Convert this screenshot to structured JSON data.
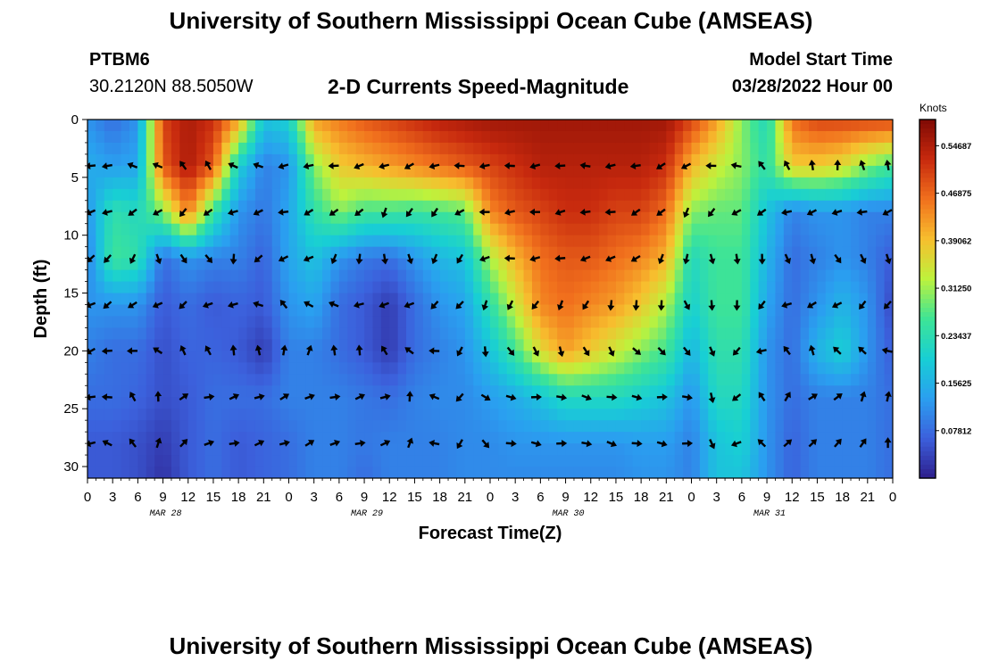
{
  "title": "University of Southern Mississippi Ocean Cube (AMSEAS)",
  "station": {
    "name": "PTBM6",
    "coords": "30.2120N  88.5050W"
  },
  "subtitle": "2-D Currents Speed-Magnitude",
  "model": {
    "label": "Model Start Time",
    "value": "03/28/2022 Hour 00"
  },
  "footer_title": "University of Southern Mississippi Ocean Cube (AMSEAS)",
  "chart_data": {
    "type": "heatmap",
    "title": "2-D Currents Speed-Magnitude",
    "xlabel": "Forecast Time(Z)",
    "ylabel": "Depth (ft)",
    "x_range_hours": [
      0,
      96
    ],
    "x_tick_labels": [
      "0",
      "3",
      "6",
      "9",
      "12",
      "15",
      "18",
      "21",
      "0",
      "3",
      "6",
      "9",
      "12",
      "15",
      "18",
      "21",
      "0",
      "3",
      "6",
      "9",
      "12",
      "15",
      "18",
      "21",
      "0",
      "3",
      "6",
      "9",
      "12",
      "15",
      "18",
      "21",
      "0"
    ],
    "date_labels": [
      "MAR 28",
      "MAR 29",
      "MAR 30",
      "MAR 31"
    ],
    "ylim": [
      0,
      31
    ],
    "y_ticks": [
      0,
      5,
      10,
      15,
      20,
      25,
      30
    ],
    "colorbar": {
      "unit": "Knots",
      "tick_labels": [
        "0.54687",
        "0.46875",
        "0.39062",
        "0.31250",
        "0.23437",
        "0.15625",
        "0.07812"
      ],
      "tick_values": [
        0.54687,
        0.46875,
        0.39062,
        0.3125,
        0.23437,
        0.15625,
        0.07812
      ],
      "range": [
        0.0,
        0.59
      ],
      "colors": [
        "#2d1e8c",
        "#3c60dc",
        "#2a9ff0",
        "#18cfd4",
        "#3ee496",
        "#bef23c",
        "#f7be2e",
        "#f1701d",
        "#c7290e",
        "#7f0a04"
      ]
    },
    "arrow_depths_ft": [
      4,
      8,
      12,
      16,
      20,
      24,
      28
    ],
    "arrow_times_h": [
      0,
      2,
      5,
      8,
      11,
      14,
      17,
      20,
      23,
      26,
      29,
      32,
      35,
      38,
      41,
      44,
      47,
      50,
      53,
      56,
      59,
      62,
      65,
      68,
      71,
      74,
      77,
      80,
      83,
      86,
      89,
      92,
      95
    ],
    "speed_field": {
      "times_h": [
        0,
        3,
        6,
        9,
        12,
        15,
        18,
        21,
        24,
        27,
        30,
        33,
        36,
        39,
        42,
        45,
        48,
        51,
        54,
        57,
        60,
        63,
        66,
        69,
        72,
        75,
        78,
        81,
        84,
        87,
        90,
        93,
        96
      ],
      "depths_ft": [
        0,
        4,
        8,
        12,
        16,
        20,
        24,
        28,
        31
      ],
      "values_knots": [
        [
          0.12,
          0.15,
          0.12,
          0.1,
          0.12,
          0.1,
          0.08,
          0.06,
          0.06
        ],
        [
          0.08,
          0.13,
          0.24,
          0.26,
          0.12,
          0.08,
          0.08,
          0.06,
          0.06
        ],
        [
          0.12,
          0.14,
          0.22,
          0.24,
          0.12,
          0.08,
          0.07,
          0.05,
          0.05
        ],
        [
          0.5,
          0.48,
          0.3,
          0.08,
          0.06,
          0.05,
          0.05,
          0.03,
          0.02
        ],
        [
          0.55,
          0.55,
          0.45,
          0.12,
          0.08,
          0.07,
          0.06,
          0.06,
          0.06
        ],
        [
          0.52,
          0.48,
          0.25,
          0.1,
          0.06,
          0.07,
          0.08,
          0.08,
          0.08
        ],
        [
          0.42,
          0.2,
          0.12,
          0.1,
          0.07,
          0.06,
          0.08,
          0.06,
          0.06
        ],
        [
          0.18,
          0.1,
          0.09,
          0.07,
          0.06,
          0.03,
          0.08,
          0.07,
          0.07
        ],
        [
          0.2,
          0.12,
          0.14,
          0.14,
          0.12,
          0.1,
          0.1,
          0.08,
          0.08
        ],
        [
          0.42,
          0.3,
          0.24,
          0.18,
          0.14,
          0.1,
          0.1,
          0.1,
          0.1
        ],
        [
          0.45,
          0.38,
          0.3,
          0.12,
          0.08,
          0.08,
          0.1,
          0.1,
          0.1
        ],
        [
          0.48,
          0.4,
          0.26,
          0.09,
          0.06,
          0.06,
          0.09,
          0.09,
          0.08
        ],
        [
          0.5,
          0.42,
          0.26,
          0.08,
          0.03,
          0.03,
          0.08,
          0.1,
          0.1
        ],
        [
          0.52,
          0.44,
          0.25,
          0.12,
          0.08,
          0.08,
          0.1,
          0.1,
          0.1
        ],
        [
          0.54,
          0.46,
          0.26,
          0.16,
          0.12,
          0.1,
          0.11,
          0.1,
          0.1
        ],
        [
          0.55,
          0.48,
          0.28,
          0.18,
          0.14,
          0.12,
          0.11,
          0.11,
          0.11
        ],
        [
          0.56,
          0.5,
          0.44,
          0.32,
          0.24,
          0.18,
          0.13,
          0.11,
          0.11
        ],
        [
          0.56,
          0.52,
          0.48,
          0.4,
          0.34,
          0.26,
          0.15,
          0.12,
          0.11
        ],
        [
          0.56,
          0.54,
          0.5,
          0.46,
          0.44,
          0.36,
          0.18,
          0.12,
          0.11
        ],
        [
          0.56,
          0.54,
          0.52,
          0.48,
          0.46,
          0.42,
          0.22,
          0.12,
          0.11
        ],
        [
          0.56,
          0.54,
          0.52,
          0.48,
          0.44,
          0.38,
          0.22,
          0.12,
          0.11
        ],
        [
          0.56,
          0.54,
          0.5,
          0.46,
          0.42,
          0.34,
          0.22,
          0.12,
          0.11
        ],
        [
          0.56,
          0.54,
          0.5,
          0.44,
          0.38,
          0.3,
          0.2,
          0.13,
          0.12
        ],
        [
          0.56,
          0.52,
          0.46,
          0.4,
          0.32,
          0.26,
          0.18,
          0.13,
          0.12
        ],
        [
          0.5,
          0.4,
          0.3,
          0.22,
          0.2,
          0.16,
          0.12,
          0.1,
          0.1
        ],
        [
          0.42,
          0.34,
          0.28,
          0.26,
          0.26,
          0.24,
          0.22,
          0.18,
          0.18
        ],
        [
          0.3,
          0.3,
          0.28,
          0.26,
          0.26,
          0.24,
          0.22,
          0.2,
          0.18
        ],
        [
          0.22,
          0.24,
          0.18,
          0.16,
          0.14,
          0.12,
          0.12,
          0.12,
          0.12
        ],
        [
          0.46,
          0.38,
          0.1,
          0.08,
          0.08,
          0.08,
          0.08,
          0.07,
          0.07
        ],
        [
          0.5,
          0.38,
          0.12,
          0.1,
          0.12,
          0.16,
          0.1,
          0.1,
          0.1
        ],
        [
          0.5,
          0.36,
          0.12,
          0.12,
          0.16,
          0.2,
          0.1,
          0.1,
          0.1
        ],
        [
          0.5,
          0.3,
          0.1,
          0.1,
          0.12,
          0.12,
          0.1,
          0.1,
          0.1
        ],
        [
          0.5,
          0.26,
          0.1,
          0.06,
          0.04,
          0.06,
          0.08,
          0.08,
          0.08
        ]
      ]
    },
    "direction_field": {
      "times_h": [
        0,
        12,
        24,
        36,
        48,
        60,
        72,
        84,
        96
      ],
      "depths_ft": [
        0,
        12,
        24,
        31
      ],
      "degrees_ccw_from_east": [
        [
          190,
          210,
          200,
          190
        ],
        [
          20,
          320,
          20,
          20
        ],
        [
          190,
          190,
          20,
          20
        ],
        [
          150,
          300,
          20,
          20
        ],
        [
          180,
          190,
          350,
          350
        ],
        [
          180,
          190,
          350,
          350
        ],
        [
          180,
          270,
          350,
          350
        ],
        [
          0,
          290,
          20,
          20
        ],
        [
          10,
          300,
          90,
          90
        ]
      ]
    }
  }
}
